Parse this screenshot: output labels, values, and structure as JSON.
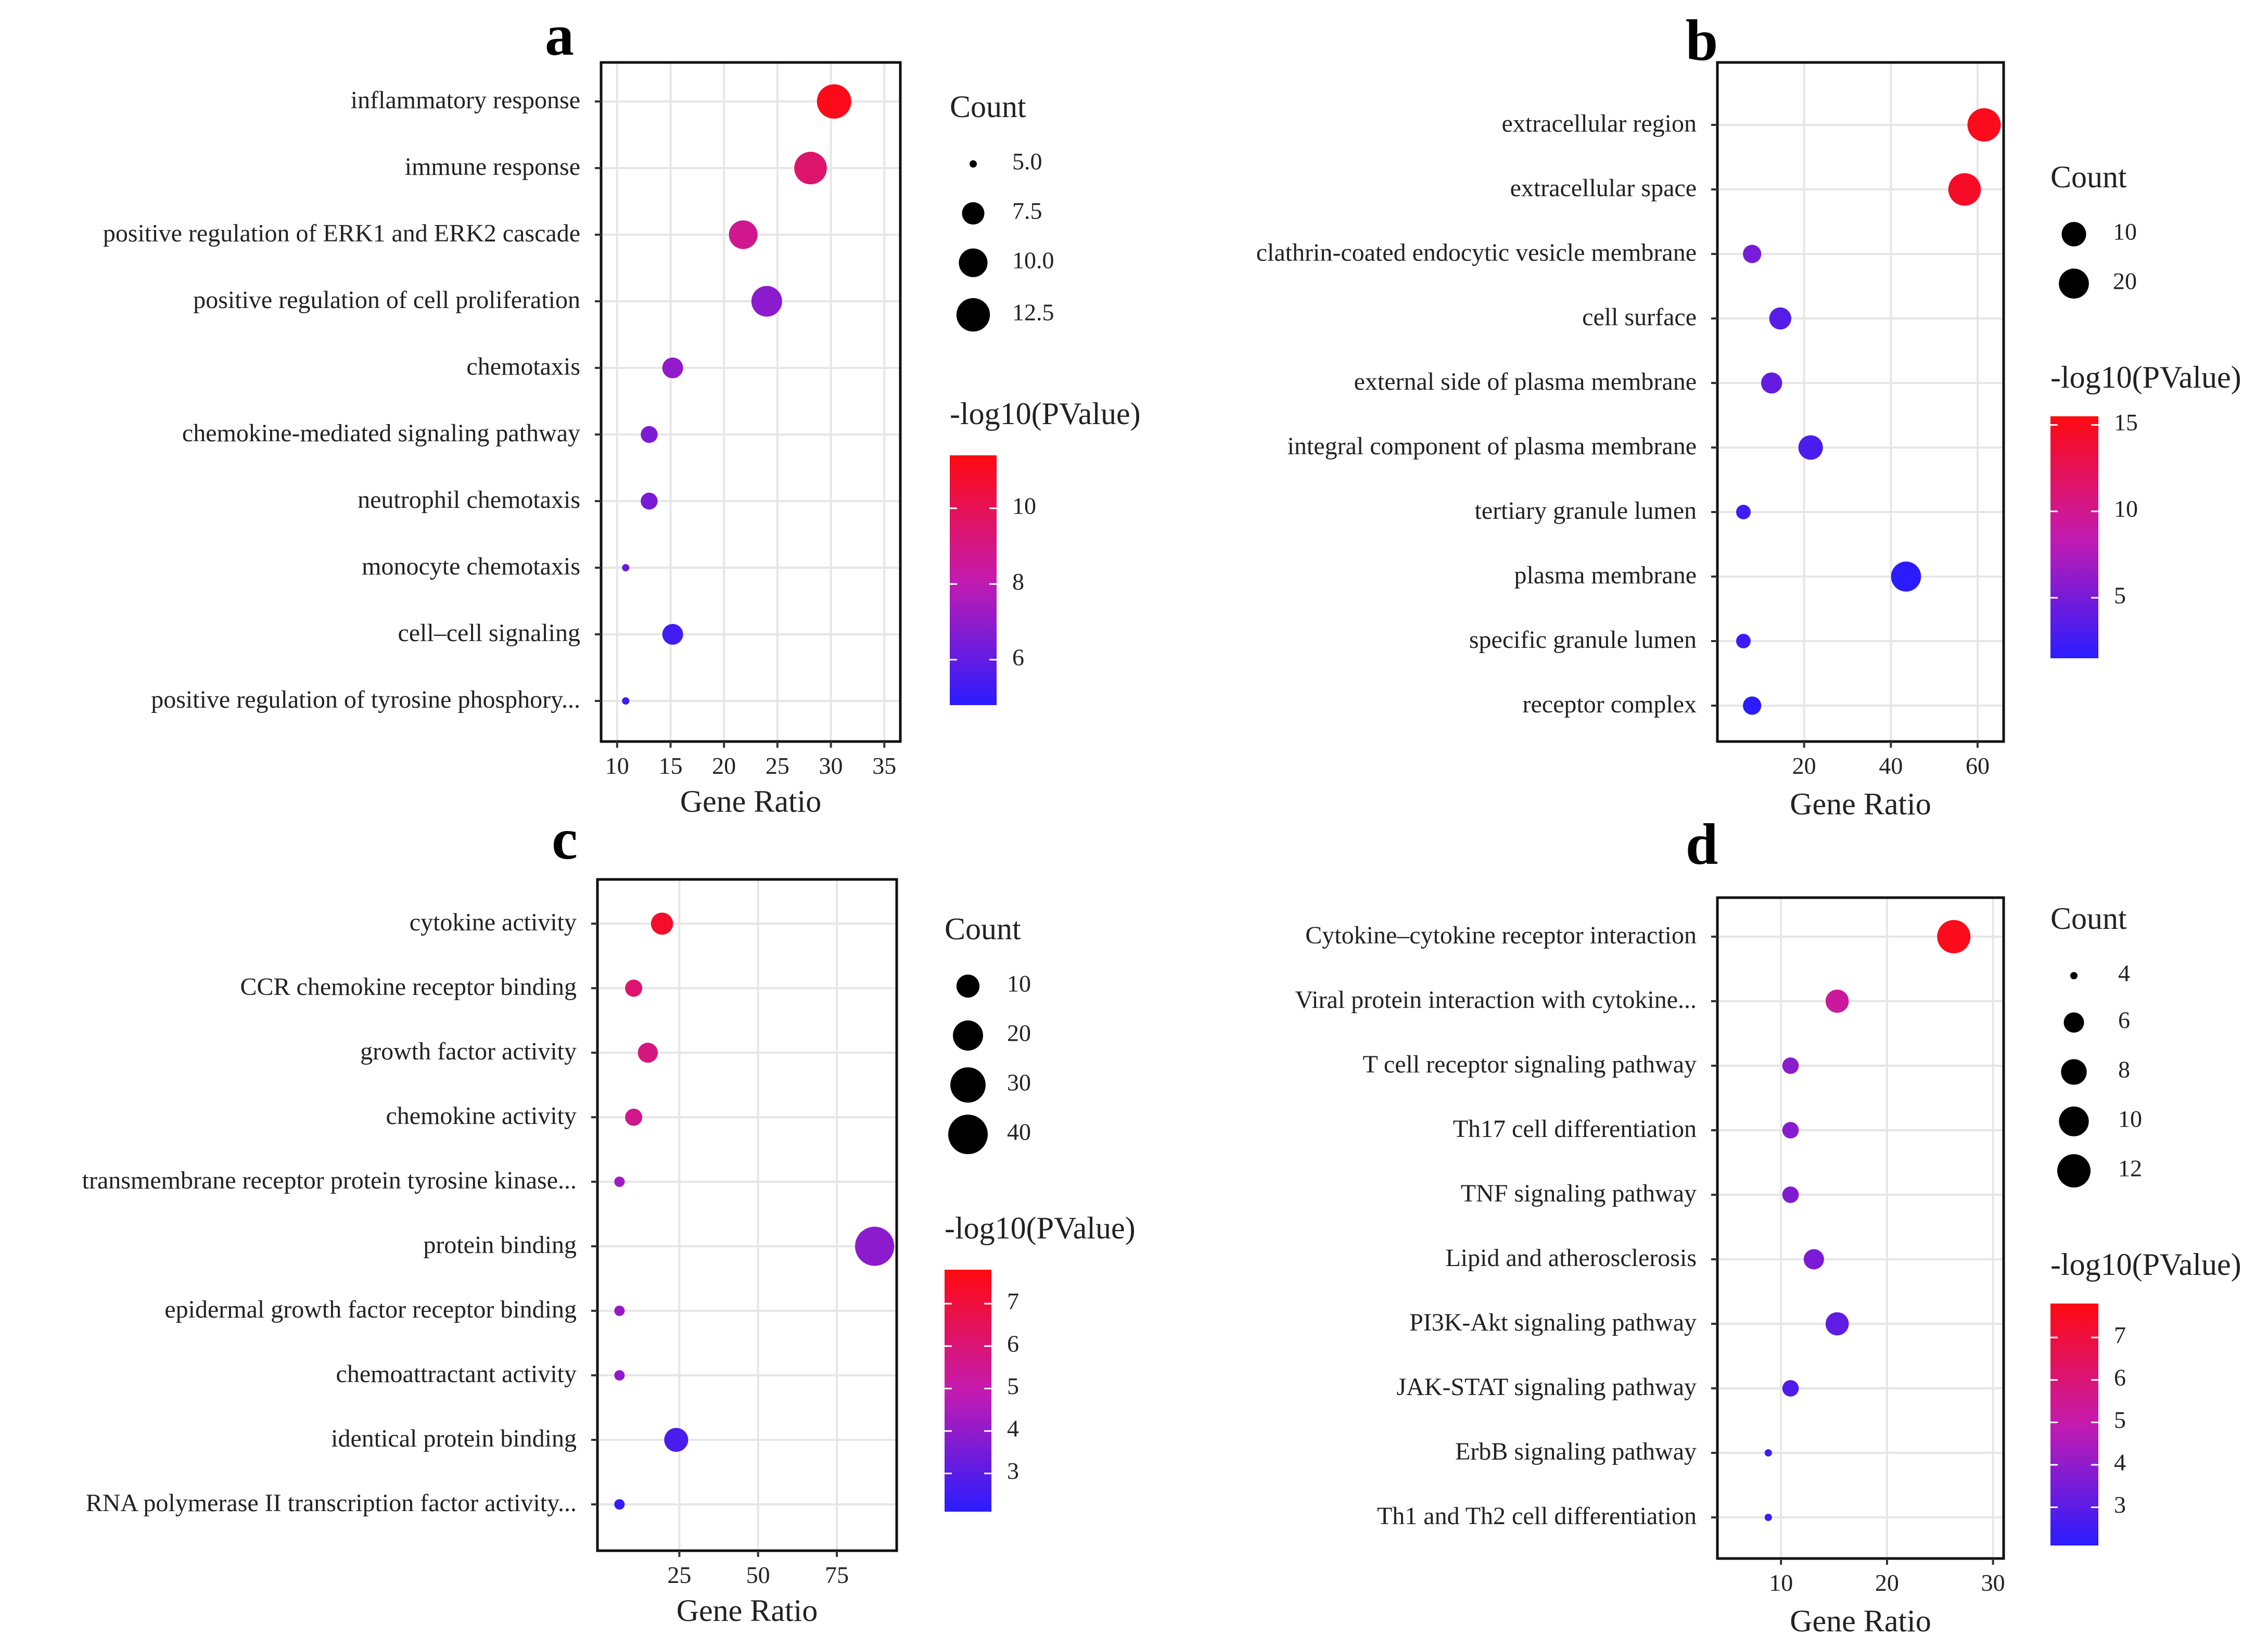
{
  "chart_data": [
    {
      "type": "scatter",
      "panel": "a",
      "xlabel": "Gene Ratio",
      "xlim": [
        8.5,
        36.5
      ],
      "xticks": [
        10,
        15,
        20,
        25,
        30,
        35
      ],
      "terms": [
        "inflammatory response",
        "immune response",
        "positive regulation of ERK1 and ERK2 cascade",
        "positive regulation of cell proliferation",
        "chemotaxis",
        "chemokine-mediated signaling pathway",
        "neutrophil chemotaxis",
        "monocyte chemotaxis",
        "cell–cell signaling",
        "positive regulation of tyrosine phosphory..."
      ],
      "gene_ratio": [
        30.3,
        28.1,
        21.8,
        24.0,
        15.2,
        13.0,
        13.0,
        10.8,
        15.2,
        10.8
      ],
      "count": [
        13,
        12,
        10,
        11,
        7,
        6,
        6,
        5,
        7,
        5
      ],
      "neg_log10_p": [
        11.2,
        9.5,
        8.8,
        6.9,
        7.0,
        6.6,
        6.5,
        6.2,
        5.3,
        5.1
      ],
      "size_legend": {
        "title": "Count",
        "values": [
          5.0,
          7.5,
          10.0,
          12.5
        ],
        "labels": [
          "5.0",
          "7.5",
          "10.0",
          "12.5"
        ]
      },
      "color_legend": {
        "title": "-log10(PValue)",
        "range": [
          4.8,
          11.4
        ],
        "ticks": [
          10,
          8,
          6
        ],
        "tick_labels": [
          "10",
          "8",
          "6"
        ]
      }
    },
    {
      "type": "scatter",
      "panel": "b",
      "xlabel": "Gene Ratio",
      "xlim": [
        0,
        66
      ],
      "xticks": [
        20,
        40,
        60
      ],
      "terms": [
        "extracellular region",
        "extracellular space",
        "clathrin-coated endocytic vesicle membrane",
        "cell surface",
        "external side of plasma membrane",
        "integral component of plasma membrane",
        "tertiary granule lumen",
        "plasma membrane",
        "specific granule lumen",
        "receptor complex"
      ],
      "gene_ratio": [
        61.5,
        57.0,
        8.0,
        14.5,
        12.5,
        21.5,
        6.0,
        43.5,
        6.0,
        8.0
      ],
      "count": [
        28,
        26,
        4,
        7,
        6,
        10,
        3,
        20,
        3,
        4
      ],
      "neg_log10_p": [
        15.0,
        14.5,
        5.0,
        3.5,
        4.2,
        3.0,
        2.5,
        1.5,
        2.4,
        1.5
      ],
      "size_legend": {
        "title": "Count",
        "values": [
          10,
          20
        ],
        "labels": [
          "10",
          "20"
        ]
      },
      "color_legend": {
        "title": "-log10(PValue)",
        "range": [
          1.5,
          15.5
        ],
        "ticks": [
          15,
          10,
          5
        ],
        "tick_labels": [
          "15",
          "10",
          "5"
        ]
      }
    },
    {
      "type": "scatter",
      "panel": "c",
      "xlabel": "Gene Ratio",
      "xlim": [
        -1,
        94
      ],
      "xticks": [
        25,
        50,
        75
      ],
      "terms": [
        "cytokine activity",
        "CCR chemokine receptor binding",
        "growth factor activity",
        "chemokine activity",
        "transmembrane receptor protein tyrosine kinase...",
        "protein binding",
        "epidermal growth factor receptor binding",
        "chemoattractant activity",
        "identical protein binding",
        "RNA polymerase II transcription factor activity..."
      ],
      "gene_ratio": [
        19.5,
        10.5,
        15.0,
        10.5,
        6.0,
        87.0,
        6.0,
        6.0,
        24.0,
        6.0
      ],
      "count": [
        9,
        5,
        7,
        5,
        3,
        39,
        3,
        3,
        11,
        3
      ],
      "neg_log10_p": [
        7.3,
        6.1,
        5.8,
        5.6,
        4.3,
        3.9,
        4.1,
        4.0,
        2.7,
        2.3
      ],
      "size_legend": {
        "title": "Count",
        "values": [
          10,
          20,
          30,
          40
        ],
        "labels": [
          "10",
          "20",
          "30",
          "40"
        ]
      },
      "color_legend": {
        "title": "-log10(PValue)",
        "range": [
          2.1,
          7.8
        ],
        "ticks": [
          7,
          6,
          5,
          4,
          3
        ],
        "tick_labels": [
          "7",
          "6",
          "5",
          "4",
          "3"
        ]
      }
    },
    {
      "type": "scatter",
      "panel": "d",
      "xlabel": "Gene Ratio",
      "xlim": [
        4,
        31
      ],
      "xticks": [
        10,
        20,
        30
      ],
      "terms": [
        "Cytokine–cytokine receptor interaction",
        "Viral protein interaction with cytokine...",
        "T cell receptor signaling pathway",
        "Th17 cell differentiation",
        "TNF signaling pathway",
        "Lipid and atherosclerosis",
        "PI3K-Akt signaling pathway",
        "JAK-STAT signaling pathway",
        "ErbB signaling pathway",
        "Th1 and Th2 cell differentiation"
      ],
      "gene_ratio": [
        26.3,
        15.3,
        10.9,
        10.9,
        10.9,
        13.1,
        15.3,
        10.9,
        8.8,
        8.8
      ],
      "count": [
        12,
        7,
        5,
        5,
        5,
        6,
        7,
        5,
        4,
        4
      ],
      "neg_log10_p": [
        7.6,
        5.3,
        3.9,
        3.8,
        3.7,
        3.6,
        3.1,
        2.8,
        2.5,
        2.4
      ],
      "size_legend": {
        "title": "Count",
        "values": [
          4,
          6,
          8,
          10,
          12
        ],
        "labels": [
          "4",
          "6",
          "8",
          "10",
          "12"
        ]
      },
      "color_legend": {
        "title": "-log10(PValue)",
        "range": [
          2.1,
          7.8
        ],
        "ticks": [
          7,
          6,
          5,
          4,
          3
        ],
        "tick_labels": [
          "7",
          "6",
          "5",
          "4",
          "3"
        ]
      }
    }
  ]
}
